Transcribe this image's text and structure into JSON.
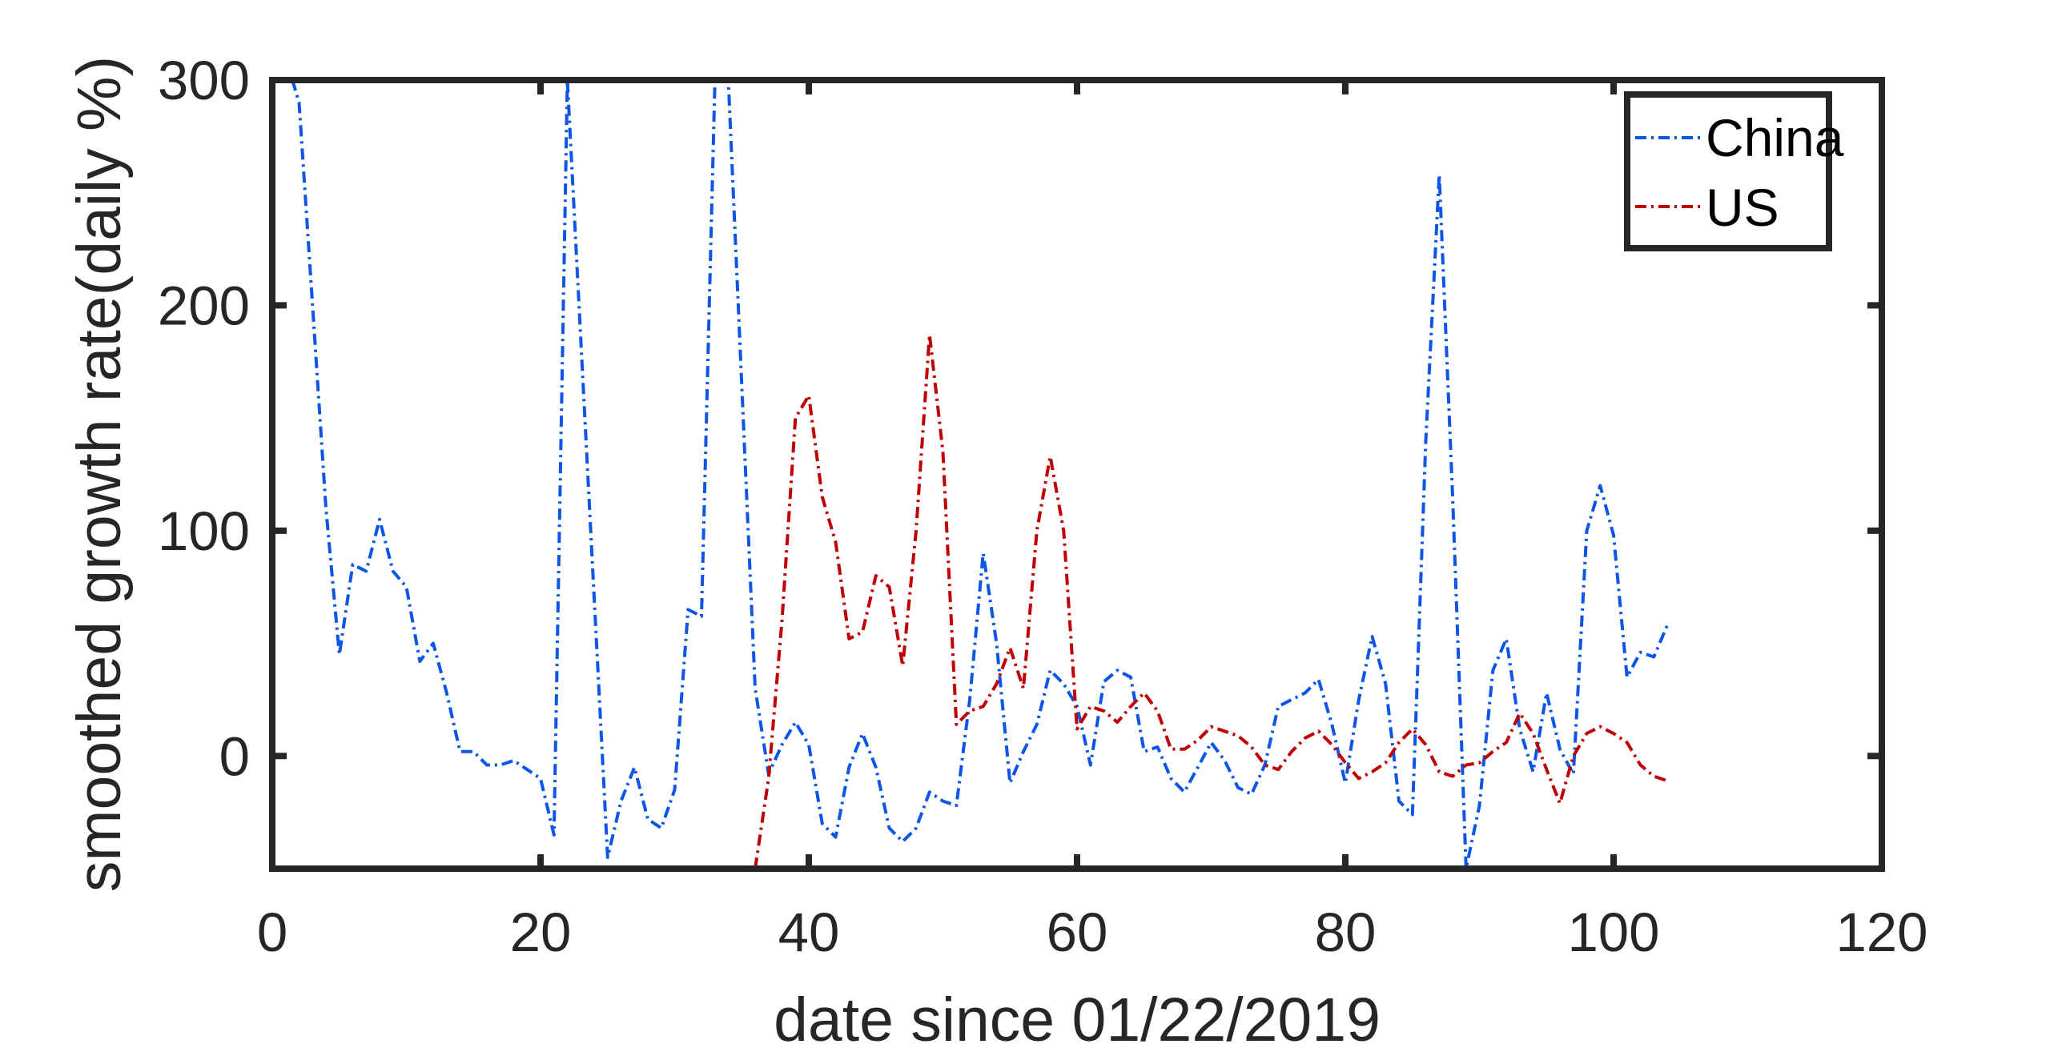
{
  "chart_data": {
    "type": "line",
    "title": "",
    "xlabel": "date since 01/22/2019",
    "ylabel": "smoothed growth rate(daily %)",
    "xlim": [
      0,
      120
    ],
    "ylim": [
      -50,
      300
    ],
    "xticks": [
      0,
      20,
      40,
      60,
      80,
      100,
      120
    ],
    "yticks": [
      0,
      100,
      200,
      300
    ],
    "x_tick_labels": [
      "0",
      "20",
      "40",
      "60",
      "80",
      "100",
      "120"
    ],
    "y_tick_labels": [
      "0",
      "100",
      "200",
      "300"
    ],
    "grid": false,
    "legend_position": "top-right",
    "series": [
      {
        "name": "China",
        "color": "#0b55e8",
        "x": [
          1,
          2,
          3,
          4,
          5,
          6,
          7,
          8,
          9,
          10,
          11,
          12,
          13,
          14,
          15,
          16,
          17,
          18,
          19,
          20,
          21,
          22,
          25,
          26,
          27,
          28,
          29,
          30,
          31,
          32,
          33,
          34,
          36,
          37,
          38,
          39,
          40,
          41,
          42,
          43,
          44,
          45,
          46,
          47,
          48,
          49,
          50,
          51,
          52,
          53,
          54,
          55,
          56,
          57,
          58,
          59,
          60,
          61,
          62,
          63,
          64,
          65,
          66,
          67,
          68,
          69,
          70,
          71,
          72,
          73,
          74,
          75,
          76,
          77,
          78,
          79,
          80,
          81,
          82,
          83,
          84,
          85,
          86,
          87,
          88,
          89,
          90,
          91,
          92,
          93,
          94,
          95,
          96,
          97,
          98,
          99,
          100,
          101,
          102,
          103,
          104
        ],
        "y": [
          310,
          290,
          200,
          110,
          45,
          85,
          82,
          105,
          82,
          75,
          42,
          50,
          28,
          2,
          2,
          -4,
          -4,
          -2,
          -6,
          -10,
          -35,
          300,
          -45,
          -20,
          -5,
          -28,
          -32,
          -15,
          65,
          62,
          300,
          300,
          30,
          -8,
          5,
          15,
          5,
          -30,
          -36,
          -5,
          10,
          -5,
          -32,
          -38,
          -32,
          -16,
          -20,
          -22,
          25,
          90,
          50,
          -12,
          2,
          14,
          38,
          32,
          22,
          -4,
          33,
          38,
          35,
          2,
          4,
          -10,
          -16,
          -5,
          6,
          -2,
          -14,
          -17,
          -4,
          22,
          25,
          28,
          34,
          14,
          -12,
          25,
          53,
          32,
          -20,
          -26,
          140,
          258,
          115,
          -50,
          -22,
          38,
          52,
          12,
          -7,
          28,
          3,
          -8,
          100,
          120,
          98,
          35,
          46,
          44,
          58
        ]
      },
      {
        "name": "US",
        "color": "#c00000",
        "x": [
          36,
          37,
          38,
          39,
          40,
          41,
          42,
          43,
          44,
          45,
          46,
          47,
          48,
          49,
          50,
          51,
          52,
          53,
          54,
          55,
          56,
          57,
          58,
          59,
          60,
          61,
          62,
          63,
          64,
          65,
          66,
          67,
          68,
          69,
          70,
          71,
          72,
          73,
          74,
          75,
          76,
          77,
          78,
          79,
          80,
          81,
          82,
          83,
          84,
          85,
          86,
          87,
          88,
          89,
          90,
          91,
          92,
          93,
          94,
          95,
          96,
          97,
          98,
          99,
          100,
          101,
          102,
          103,
          104
        ],
        "y": [
          -50,
          -10,
          60,
          150,
          160,
          115,
          95,
          52,
          55,
          80,
          75,
          40,
          100,
          187,
          135,
          14,
          20,
          22,
          32,
          48,
          30,
          100,
          133,
          100,
          12,
          22,
          20,
          15,
          22,
          28,
          20,
          3,
          3,
          7,
          13,
          11,
          9,
          4,
          -4,
          -6,
          2,
          8,
          11,
          5,
          -3,
          -10,
          -7,
          -3,
          6,
          12,
          5,
          -7,
          -9,
          -4,
          -3,
          2,
          6,
          19,
          10,
          -6,
          -21,
          0,
          10,
          13,
          10,
          6,
          -4,
          -9,
          -11
        ]
      }
    ]
  }
}
